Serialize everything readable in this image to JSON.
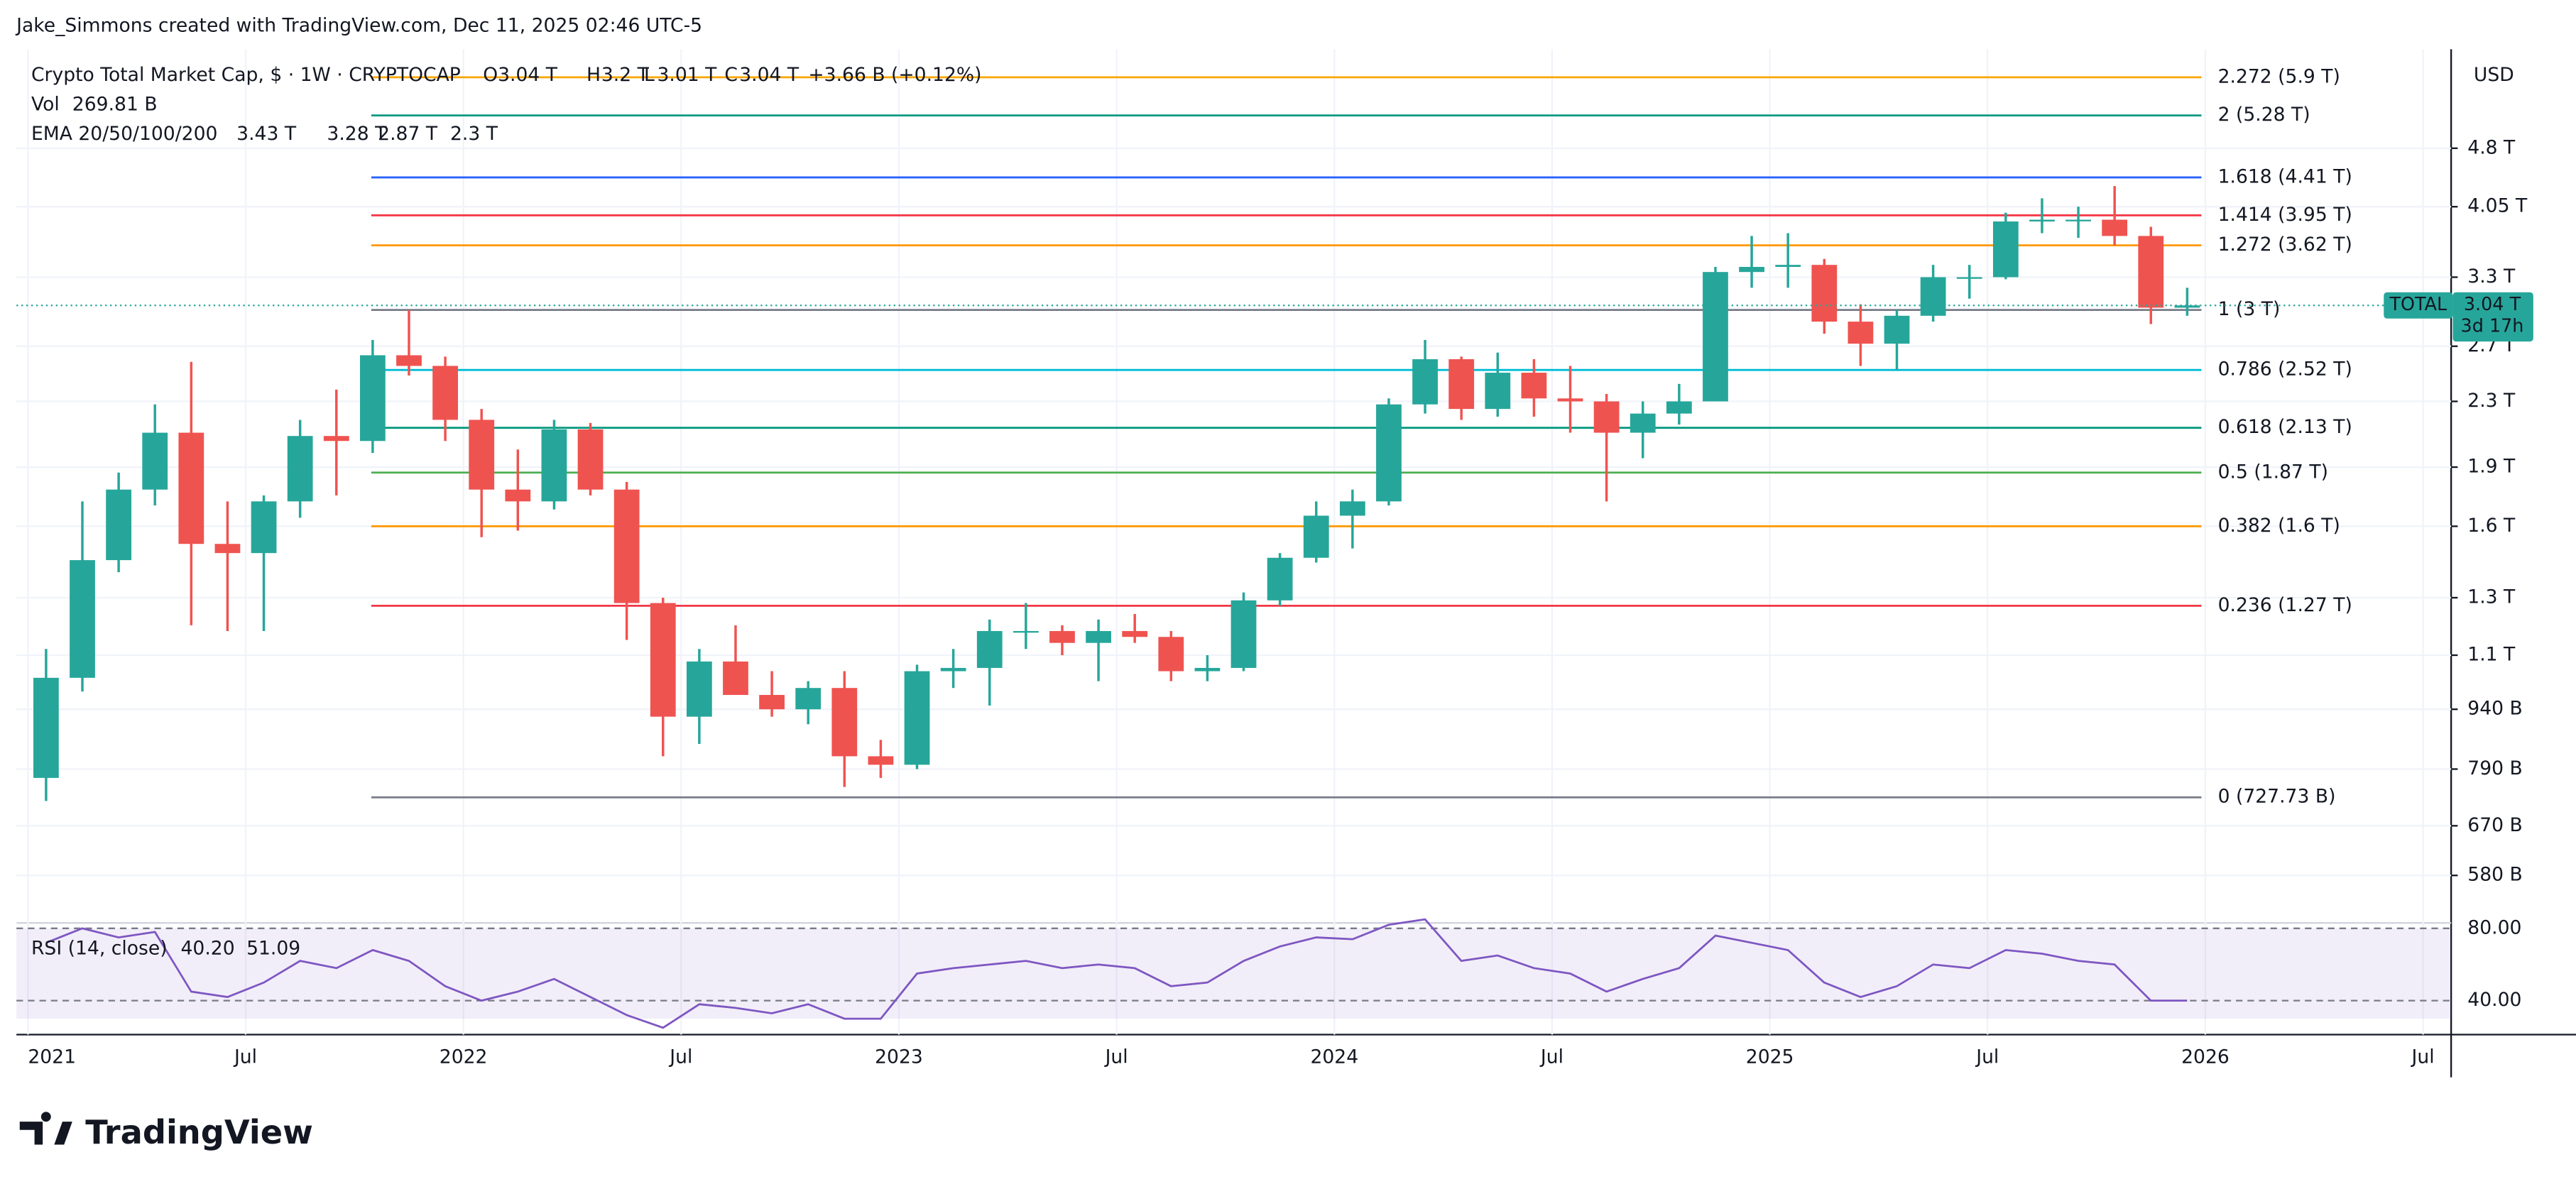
{
  "page": {
    "credit": "Jake_Simmons created with TradingView.com, Dec 11, 2025 02:46 UTC-5",
    "logo": "TradingView"
  },
  "chart_data": {
    "type": "candlestick",
    "title": "Crypto Total Market Cap, $ · 1W · CRYPTOCAP",
    "ohlc_labels": [
      "O",
      "H",
      "L",
      "C"
    ],
    "ohlc_values": [
      "3.04 T",
      "3.2 T",
      "3.01 T",
      "3.04 T"
    ],
    "change": "+3.66 B (+0.12%)",
    "volume_label": "Vol",
    "volume_value": "269.81 B",
    "ema_label": "EMA 20/50/100/200",
    "ema_values": [
      {
        "text": "3.43 T",
        "color": "#f23645"
      },
      {
        "text": "3.28 T",
        "color": "#ff9800"
      },
      {
        "text": "2.87 T",
        "color": "#00bcd4"
      },
      {
        "text": "2.3 T",
        "color": "#1a1adb"
      }
    ],
    "currency": "USD",
    "price_tag": {
      "symbol": "TOTAL",
      "value": 3.04,
      "label": "3.04 T",
      "countdown": "3d 17h"
    },
    "log_scale": true,
    "grid": true,
    "up_color": "#26a69a",
    "down_color": "#ef5350",
    "x": [
      "2021-01",
      "2021-02",
      "2021-03",
      "2021-04",
      "2021-05",
      "2021-06",
      "2021-07",
      "2021-08",
      "2021-09",
      "2021-10",
      "2021-11",
      "2021-12",
      "2022-01",
      "2022-02",
      "2022-03",
      "2022-04",
      "2022-05",
      "2022-06",
      "2022-07",
      "2022-08",
      "2022-09",
      "2022-10",
      "2022-11",
      "2022-12",
      "2023-01",
      "2023-02",
      "2023-03",
      "2023-04",
      "2023-05",
      "2023-06",
      "2023-07",
      "2023-08",
      "2023-09",
      "2023-10",
      "2023-11",
      "2023-12",
      "2024-01",
      "2024-02",
      "2024-03",
      "2024-04",
      "2024-05",
      "2024-06",
      "2024-07",
      "2024-08",
      "2024-09",
      "2024-10",
      "2024-11",
      "2024-12",
      "2025-01",
      "2025-02",
      "2025-03",
      "2025-04",
      "2025-05",
      "2025-06",
      "2025-07",
      "2025-08",
      "2025-09",
      "2025-10",
      "2025-11",
      "2025-12"
    ],
    "open": [
      0.77,
      1.03,
      1.45,
      1.78,
      2.1,
      1.52,
      1.48,
      1.72,
      2.08,
      2.05,
      2.63,
      2.55,
      2.18,
      1.78,
      1.72,
      2.12,
      1.78,
      1.28,
      0.92,
      1.08,
      0.98,
      0.94,
      1.0,
      0.82,
      0.8,
      1.05,
      1.06,
      1.18,
      1.18,
      1.14,
      1.18,
      1.16,
      1.05,
      1.06,
      1.29,
      1.46,
      1.65,
      1.72,
      2.28,
      2.6,
      2.25,
      2.5,
      2.32,
      2.3,
      2.1,
      2.22,
      2.3,
      3.35,
      3.4,
      3.42,
      2.9,
      2.72,
      2.95,
      3.3,
      3.3,
      3.88,
      3.9,
      3.9,
      3.72,
      3.02
    ],
    "high": [
      1.12,
      1.72,
      1.87,
      2.28,
      2.58,
      1.72,
      1.75,
      2.18,
      2.38,
      2.75,
      3.0,
      2.62,
      2.25,
      2.0,
      2.18,
      2.16,
      1.82,
      1.3,
      1.12,
      1.2,
      1.05,
      1.02,
      1.05,
      0.86,
      1.07,
      1.12,
      1.22,
      1.28,
      1.2,
      1.22,
      1.24,
      1.18,
      1.1,
      1.32,
      1.48,
      1.72,
      1.78,
      2.32,
      2.75,
      2.62,
      2.65,
      2.6,
      2.55,
      2.35,
      2.3,
      2.42,
      3.4,
      3.72,
      3.75,
      3.48,
      3.05,
      3.0,
      3.42,
      3.42,
      3.98,
      4.15,
      4.05,
      4.3,
      3.82,
      3.2
    ],
    "low": [
      0.72,
      0.99,
      1.4,
      1.7,
      1.2,
      1.18,
      1.18,
      1.64,
      1.75,
      1.98,
      2.48,
      2.05,
      1.55,
      1.58,
      1.68,
      1.75,
      1.15,
      0.82,
      0.85,
      0.98,
      0.92,
      0.9,
      0.75,
      0.77,
      0.79,
      1.0,
      0.95,
      1.12,
      1.1,
      1.02,
      1.14,
      1.02,
      1.02,
      1.05,
      1.27,
      1.44,
      1.5,
      1.7,
      2.22,
      2.18,
      2.2,
      2.2,
      2.1,
      1.72,
      1.95,
      2.15,
      2.3,
      3.2,
      3.2,
      2.8,
      2.55,
      2.52,
      2.9,
      3.1,
      3.28,
      3.75,
      3.7,
      3.62,
      2.88,
      2.95
    ],
    "close": [
      1.03,
      1.45,
      1.78,
      2.1,
      1.52,
      1.48,
      1.72,
      2.08,
      2.05,
      2.63,
      2.55,
      2.18,
      1.78,
      1.72,
      2.12,
      1.78,
      1.28,
      0.92,
      1.08,
      0.98,
      0.94,
      1.0,
      0.82,
      0.8,
      1.05,
      1.06,
      1.18,
      1.18,
      1.14,
      1.18,
      1.16,
      1.05,
      1.06,
      1.29,
      1.46,
      1.65,
      1.72,
      2.28,
      2.6,
      2.25,
      2.5,
      2.32,
      2.3,
      2.1,
      2.22,
      2.3,
      3.35,
      3.4,
      3.42,
      2.9,
      2.72,
      2.95,
      3.3,
      3.3,
      3.88,
      3.9,
      3.9,
      3.72,
      3.02,
      3.04
    ],
    "xlim": [
      "2021-01",
      "2026-08"
    ],
    "xticks": [
      {
        "value": "2021-01",
        "label": "2021"
      },
      {
        "value": "2021-07",
        "label": "Jul"
      },
      {
        "value": "2022-01",
        "label": "2022"
      },
      {
        "value": "2022-07",
        "label": "Jul"
      },
      {
        "value": "2023-01",
        "label": "2023"
      },
      {
        "value": "2023-07",
        "label": "Jul"
      },
      {
        "value": "2024-01",
        "label": "2024"
      },
      {
        "value": "2024-07",
        "label": "Jul"
      },
      {
        "value": "2025-01",
        "label": "2025"
      },
      {
        "value": "2025-07",
        "label": "Jul"
      },
      {
        "value": "2026-01",
        "label": "2026"
      },
      {
        "value": "2026-07",
        "label": "Jul"
      }
    ],
    "ylim": [
      0.51,
      6.4
    ],
    "yticks": [
      {
        "value": 4.8,
        "label": "4.8 T"
      },
      {
        "value": 4.05,
        "label": "4.05 T"
      },
      {
        "value": 3.3,
        "label": "3.3 T"
      },
      {
        "value": 2.7,
        "label": "2.7 T"
      },
      {
        "value": 2.3,
        "label": "2.3 T"
      },
      {
        "value": 1.9,
        "label": "1.9 T"
      },
      {
        "value": 1.6,
        "label": "1.6 T"
      },
      {
        "value": 1.3,
        "label": "1.3 T"
      },
      {
        "value": 1.1,
        "label": "1.1 T"
      },
      {
        "value": 0.94,
        "label": "940 B"
      },
      {
        "value": 0.79,
        "label": "790 B"
      },
      {
        "value": 0.67,
        "label": "670 B"
      },
      {
        "value": 0.58,
        "label": "580 B"
      }
    ],
    "fib_levels": [
      {
        "label": "2.272 (5.9 T)",
        "value": 5.9,
        "color": "#f7a600"
      },
      {
        "label": "2 (5.28 T)",
        "value": 5.28,
        "color": "#089981"
      },
      {
        "label": "1.618 (4.41 T)",
        "value": 4.41,
        "color": "#2962ff"
      },
      {
        "label": "1.414 (3.95 T)",
        "value": 3.95,
        "color": "#f23645"
      },
      {
        "label": "1.272 (3.62 T)",
        "value": 3.62,
        "color": "#ff9800"
      },
      {
        "label": "1 (3 T)",
        "value": 3,
        "color": "#787b86"
      },
      {
        "label": "0.786 (2.52 T)",
        "value": 2.52,
        "color": "#00bcd4"
      },
      {
        "label": "0.618 (2.13 T)",
        "value": 2.13,
        "color": "#089981"
      },
      {
        "label": "0.5 (1.87 T)",
        "value": 1.87,
        "color": "#4caf50"
      },
      {
        "label": "0.382 (1.6 T)",
        "value": 1.6,
        "color": "#ff9800"
      },
      {
        "label": "0.236 (1.27 T)",
        "value": 1.27,
        "color": "#f23645"
      },
      {
        "label": "0 (727.73 B)",
        "value": 0.72773,
        "color": "#787b86"
      }
    ],
    "rsi": {
      "label": "RSI (14, close)",
      "value_text": "40.20",
      "ma_text": "51.09",
      "color": "#7e57c2",
      "values": [
        72,
        80,
        75,
        78,
        45,
        42,
        50,
        62,
        58,
        68,
        62,
        48,
        40,
        45,
        52,
        42,
        32,
        25,
        38,
        36,
        33,
        38,
        30,
        30,
        55,
        58,
        60,
        62,
        58,
        60,
        58,
        48,
        50,
        62,
        70,
        75,
        74,
        82,
        85,
        62,
        65,
        58,
        55,
        45,
        52,
        58,
        76,
        72,
        68,
        50,
        42,
        48,
        60,
        58,
        68,
        66,
        62,
        60,
        40,
        40
      ],
      "ylim": [
        23,
        83
      ],
      "yticks": [
        {
          "value": 80,
          "label": "80.00"
        },
        {
          "value": 40,
          "label": "40.00"
        }
      ]
    }
  }
}
